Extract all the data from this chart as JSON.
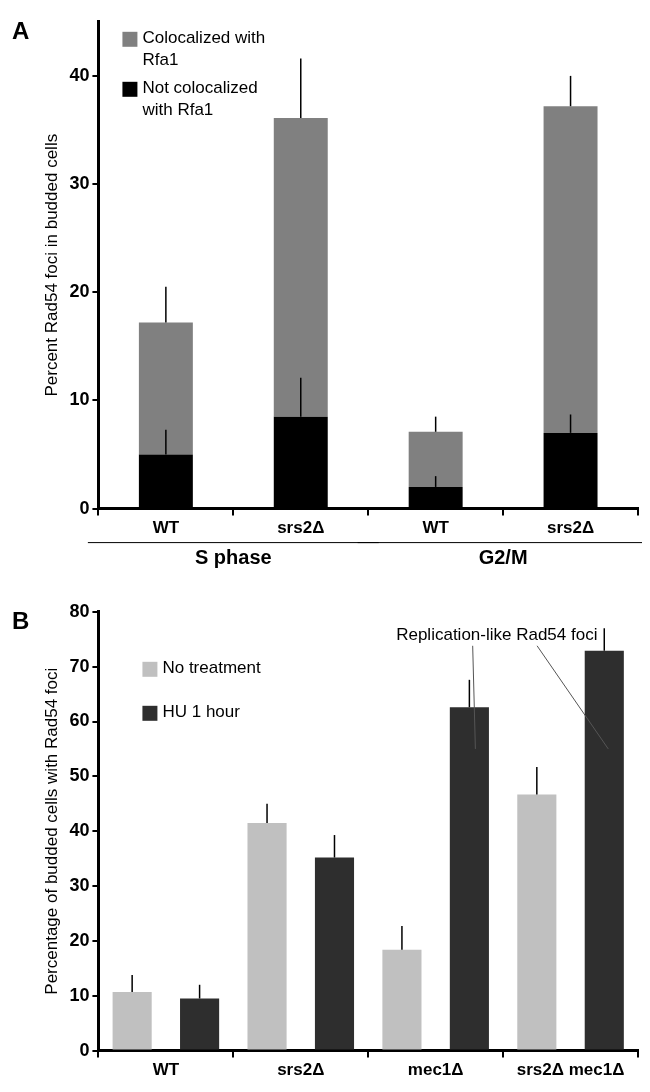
{
  "chart_data": [
    {
      "type": "bar",
      "title": "A",
      "ylabel": "Percent Rad54 foci in budded cells",
      "categories": [
        "WT",
        "srs2Δ",
        "WT",
        "srs2Δ"
      ],
      "stacked": true,
      "legend": "top left",
      "grid": false,
      "ylim": [
        0,
        45
      ],
      "yticks": [
        0,
        10,
        20,
        30,
        40
      ],
      "annotations": [
        "S phase",
        "G2/M"
      ],
      "series": [
        {
          "name": "Not colocalized with Rfa1",
          "color": "#000000",
          "values": [
            5.0,
            8.5,
            2.0,
            7.0
          ],
          "errors": [
            [
              5.0,
              7.3
            ],
            [
              8.5,
              12.1
            ],
            [
              2.0,
              3.0
            ],
            [
              7.0,
              8.7
            ]
          ]
        },
        {
          "name": "Colocalized with Rfa1",
          "color": "#808080",
          "values": [
            12.2,
            27.6,
            5.1,
            30.2
          ],
          "errors": [
            [
              17.2,
              20.5
            ],
            [
              36.1,
              41.6
            ],
            [
              7.1,
              8.5
            ],
            [
              37.2,
              40.0
            ]
          ]
        }
      ]
    },
    {
      "type": "bar",
      "title": "B",
      "ylabel": "Percentage of budded cells with Rad54 foci",
      "categories": [
        "WT",
        "srs2Δ",
        "mec1Δ",
        "srs2Δ mec1Δ"
      ],
      "legend": "top left",
      "grid": false,
      "ylim": [
        0,
        80
      ],
      "yticks": [
        0,
        10,
        20,
        30,
        40,
        50,
        60,
        70,
        80
      ],
      "annotations": [
        "Replication-like Rad54 foci"
      ],
      "series": [
        {
          "name": "No treatment",
          "color": "#c0c0c0",
          "values": [
            10.7,
            41.5,
            18.4,
            46.7
          ],
          "errors": [
            [
              10.7,
              13.8
            ],
            [
              41.5,
              45.0
            ],
            [
              18.4,
              22.7
            ],
            [
              46.7,
              51.7
            ]
          ]
        },
        {
          "name": "HU 1 hour",
          "color": "#2e2e2e",
          "values": [
            9.5,
            35.2,
            62.6,
            72.9
          ],
          "errors": [
            [
              9.5,
              12.0
            ],
            [
              35.2,
              39.3
            ],
            [
              62.6,
              67.6
            ],
            [
              72.9,
              77.0
            ]
          ]
        }
      ]
    }
  ]
}
